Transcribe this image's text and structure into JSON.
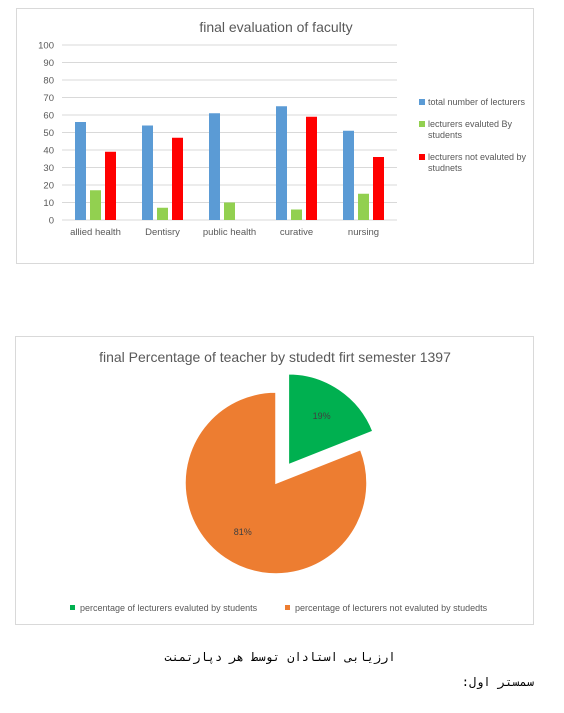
{
  "chart_data": [
    {
      "type": "bar",
      "title": "final evaluation of faculty",
      "categories": [
        "allied health",
        "Dentisry",
        "public health",
        "curative",
        "nursing"
      ],
      "series": [
        {
          "name": "total number of lecturers",
          "values": [
            56,
            54,
            61,
            65,
            51
          ],
          "color": "#5b9bd5"
        },
        {
          "name": "lecturers evaluted By students",
          "values": [
            17,
            7,
            10,
            6,
            15
          ],
          "color": "#92d050"
        },
        {
          "name": "lecturers not evaluted by studnets",
          "values": [
            39,
            47,
            null,
            59,
            36
          ],
          "color": "#ff0000"
        }
      ],
      "ylim": [
        0,
        100
      ],
      "yticks": [
        0,
        10,
        20,
        30,
        40,
        50,
        60,
        70,
        80,
        90,
        100
      ],
      "grid": true,
      "legend_position": "right"
    },
    {
      "type": "pie",
      "title": "final Percentage of teacher by studedt firt semester 1397",
      "labels": [
        "percentage of  lecturers evaluted by students",
        "percentage of lecturers not evaluted by studedts"
      ],
      "values": [
        19,
        81
      ],
      "data_labels": [
        "19%",
        "81%"
      ],
      "colors": [
        "#00b050",
        "#ed7d31"
      ],
      "exploded": "first slice",
      "legend_position": "bottom"
    }
  ],
  "captions": {
    "main": "ارزیابی استادان توسط هر دپارتمنت",
    "sub": "سمستر اول:"
  }
}
